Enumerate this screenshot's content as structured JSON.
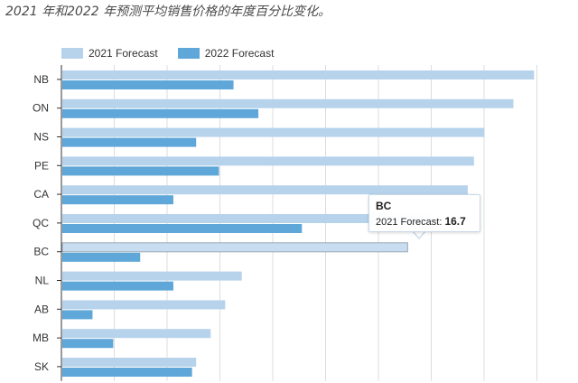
{
  "caption": "2021 年和2022 年预测平均销售价格的年度百分比变化。",
  "colors": {
    "s2021": "#b7d3ec",
    "s2022": "#5ea7d8",
    "grid": "#dcdcdc",
    "axis": "#333333"
  },
  "chart_data": {
    "type": "bar",
    "orientation": "horizontal",
    "categories": [
      "NB",
      "ON",
      "NS",
      "PE",
      "CA",
      "QC",
      "BC",
      "NL",
      "AB",
      "MB",
      "SK"
    ],
    "series": [
      {
        "name": "2021 Forecast",
        "values": [
          22.8,
          21.8,
          20.4,
          19.9,
          19.6,
          18.0,
          16.7,
          8.7,
          7.9,
          7.2,
          6.5
        ]
      },
      {
        "name": "2022 Forecast",
        "values": [
          8.3,
          9.5,
          6.5,
          7.6,
          5.4,
          11.6,
          3.8,
          5.4,
          1.5,
          2.5,
          6.3
        ]
      }
    ],
    "xlim": [
      0,
      23
    ],
    "grid": true,
    "legend": "top-left",
    "highlighted_category": "BC"
  },
  "tooltip": {
    "title": "BC",
    "label": "2021 Forecast: ",
    "value": "16.7"
  }
}
